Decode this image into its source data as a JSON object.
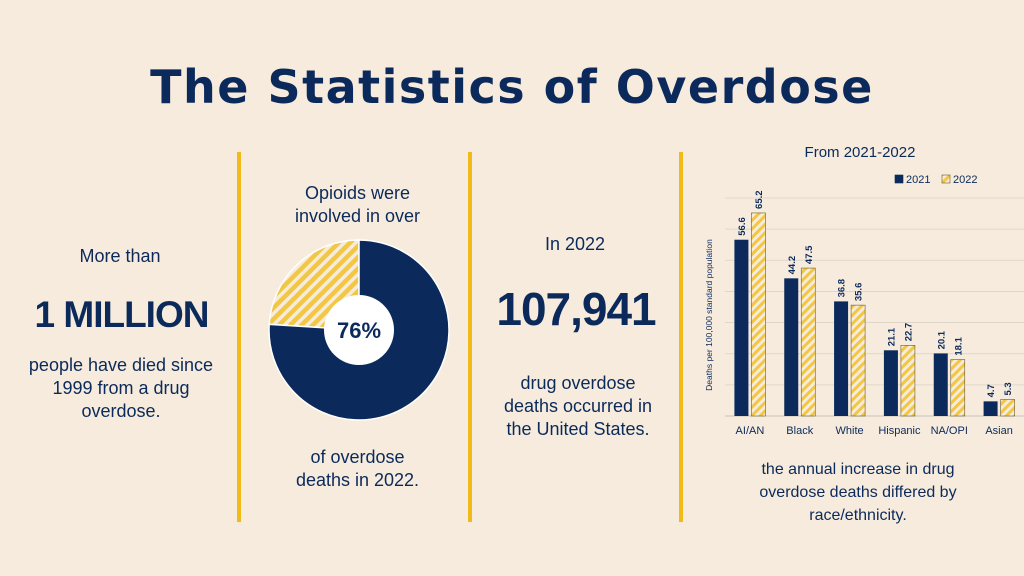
{
  "title": "The Statistics of Overdose",
  "col1": {
    "lead": "More than",
    "big": "1 MILLION",
    "desc": [
      "people have died since",
      "1999 from a drug",
      "overdose."
    ]
  },
  "col2": {
    "lead": [
      "Opioids were",
      "involved in over"
    ],
    "percent_label": "76%",
    "percent_value": 76,
    "desc": [
      "of overdose",
      "deaths in 2022."
    ]
  },
  "col3": {
    "lead": "In 2022",
    "big": "107,941",
    "desc": [
      "drug overdose",
      "deaths occurred in",
      "the United States."
    ]
  },
  "col4": {
    "subtitle": "From 2021-2022",
    "desc": [
      "the annual increase in drug",
      "overdose deaths differed by",
      "race/ethnicity."
    ]
  },
  "colors": {
    "navy": "#0b2a5b",
    "gold": "#f0bb18",
    "hatch": "#f2c744",
    "background": "#f6ebdc"
  },
  "chart_data": {
    "type": "bar",
    "ylabel": "Deaths per 100,000 standard population",
    "categories": [
      "AI/AN",
      "Black",
      "White",
      "Hispanic",
      "NA/OPI",
      "Asian"
    ],
    "series": [
      {
        "name": "2021",
        "values": [
          56.6,
          44.2,
          36.8,
          21.1,
          20.1,
          4.7
        ]
      },
      {
        "name": "2022",
        "values": [
          65.2,
          47.5,
          35.6,
          22.7,
          18.1,
          5.3
        ]
      }
    ],
    "value_labels": [
      [
        "56.6",
        "44.2",
        "36.8",
        "21.1",
        "20.1",
        "4.7"
      ],
      [
        "65.2",
        "47.5",
        "35.6",
        "22.7",
        "18.1",
        "5.3"
      ]
    ],
    "ylim": [
      0,
      70
    ],
    "grid": true,
    "legend": "top-right"
  }
}
